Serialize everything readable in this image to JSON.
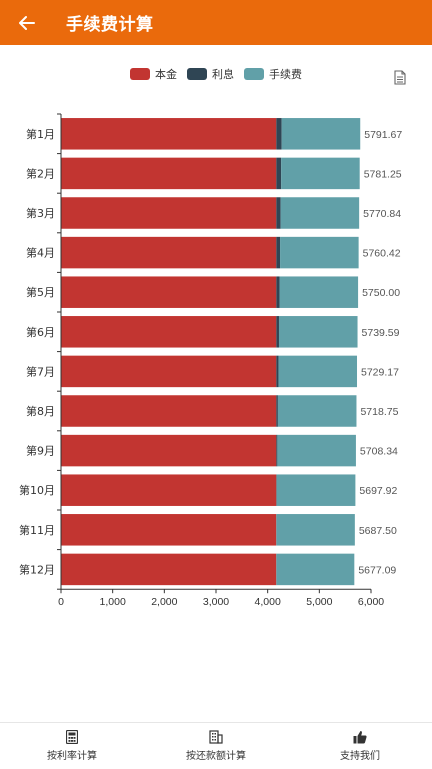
{
  "appbar": {
    "title": "手续费计算",
    "back_icon": "arrow-left-icon"
  },
  "chart_data": {
    "type": "bar",
    "orientation": "horizontal",
    "stacked": true,
    "categories": [
      "第1月",
      "第2月",
      "第3月",
      "第4月",
      "第5月",
      "第6月",
      "第7月",
      "第8月",
      "第9月",
      "第10月",
      "第11月",
      "第12月"
    ],
    "series": [
      {
        "name": "本金",
        "color": "#c23531",
        "values": [
          4167,
          4167,
          4167,
          4167,
          4167,
          4167,
          4167,
          4167,
          4167,
          4167,
          4167,
          4167
        ]
      },
      {
        "name": "利息",
        "color": "#2f4554",
        "values": [
          104,
          94,
          84,
          73,
          63,
          52,
          42,
          31,
          21,
          10,
          0,
          0
        ]
      },
      {
        "name": "手续费",
        "color": "#61a0a8",
        "values": [
          1520.67,
          1520.25,
          1519.84,
          1520.42,
          1520.0,
          1520.59,
          1520.17,
          1520.75,
          1520.34,
          1520.92,
          1520.5,
          1510.09
        ]
      }
    ],
    "totals": [
      "5791.67",
      "5781.25",
      "5770.84",
      "5760.42",
      "5750.00",
      "5739.59",
      "5729.17",
      "5718.75",
      "5708.34",
      "5697.92",
      "5687.50",
      "5677.09"
    ],
    "xlim": [
      0,
      6000
    ],
    "xticks": [
      "0",
      "1,000",
      "2,000",
      "3,000",
      "4,000",
      "5,000",
      "6,000"
    ],
    "legend_position": "top-center",
    "grid": false
  },
  "toolbar": {
    "doc_icon": "document-icon"
  },
  "bottom_nav": [
    {
      "label": "按利率计算",
      "icon": "calculator-icon"
    },
    {
      "label": "按还款额计算",
      "icon": "building-icon"
    },
    {
      "label": "支持我们",
      "icon": "thumbs-up-icon"
    }
  ]
}
